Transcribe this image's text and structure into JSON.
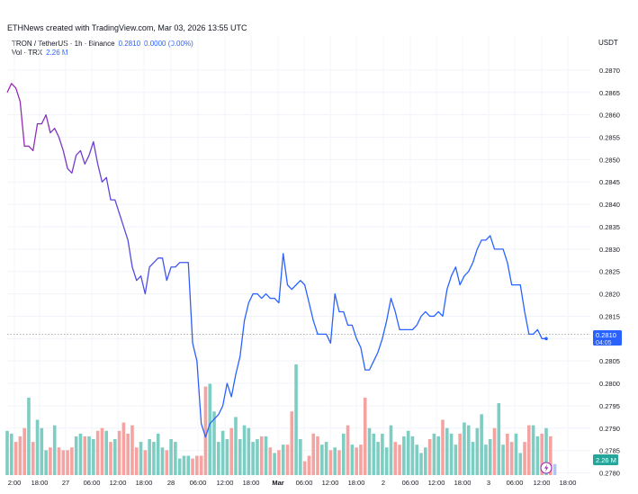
{
  "header": {
    "credit": "ETHNews created with TradingView.com, Mar 03, 2026 13:55 UTC",
    "symbol": "TRON / TetherUS · 1h · Binance",
    "last": "0.2810",
    "change": "0.0000 (0.00%)",
    "vol_label": "Vol · TRX",
    "vol_value": "2.26 M"
  },
  "chart_data": {
    "type": "line",
    "currency_label": "USDT",
    "ylim": [
      0.27795,
      0.28732
    ],
    "yticks": [
      "0.2870",
      "0.2865",
      "0.2860",
      "0.2855",
      "0.2850",
      "0.2845",
      "0.2840",
      "0.2835",
      "0.2830",
      "0.2825",
      "0.2820",
      "0.2815",
      "0.2810",
      "0.2805",
      "0.2800",
      "0.2795",
      "0.2790",
      "0.2785",
      "0.2780"
    ],
    "xticks": [
      "2:00",
      "18:00",
      "27",
      "06:00",
      "12:00",
      "18:00",
      "28",
      "06:00",
      "12:00",
      "18:00",
      "Mar",
      "06:00",
      "12:00",
      "18:00",
      "2",
      "06:00",
      "12:00",
      "18:00",
      "3",
      "06:00",
      "12:00",
      "18:00"
    ],
    "price_label": "0.2810",
    "countdown": "04:05",
    "volume_label": "2.26 M",
    "colors": {
      "line_start": "#9c27b0",
      "line_end": "#2962ff",
      "vol_up": "#7ecdc3",
      "vol_down": "#f4a3a1",
      "price_badge": "#2962ff"
    },
    "series": [
      {
        "values": [
          0.2865,
          0.2867,
          0.2866,
          0.2863,
          0.2853,
          0.2853,
          0.2852,
          0.2858,
          0.2858,
          0.286,
          0.2856,
          0.2857,
          0.2855,
          0.2852,
          0.2848,
          0.2847,
          0.2851,
          0.2852,
          0.2849,
          0.2851,
          0.2854,
          0.2849,
          0.2845,
          0.2846,
          0.2841,
          0.2841,
          0.2838,
          0.2835,
          0.2832,
          0.2826,
          0.2823,
          0.2824,
          0.282,
          0.2826,
          0.2827,
          0.2828,
          0.2828,
          0.2823,
          0.2826,
          0.2826,
          0.2827,
          0.2827,
          0.2827,
          0.2809,
          0.2805,
          0.2791,
          0.2788,
          0.2791,
          0.2792,
          0.2793,
          0.2795,
          0.28,
          0.2797,
          0.2802,
          0.2806,
          0.2814,
          0.2818,
          0.282,
          0.282,
          0.2819,
          0.282,
          0.2819,
          0.2819,
          0.2818,
          0.2829,
          0.2822,
          0.2821,
          0.2822,
          0.2823,
          0.2822,
          0.2818,
          0.2814,
          0.2811,
          0.2811,
          0.2811,
          0.2809,
          0.282,
          0.2816,
          0.2816,
          0.2813,
          0.2813,
          0.281,
          0.2808,
          0.2803,
          0.2803,
          0.2805,
          0.2807,
          0.281,
          0.2814,
          0.2819,
          0.2816,
          0.2812,
          0.2812,
          0.2812,
          0.2812,
          0.2813,
          0.2815,
          0.2816,
          0.2815,
          0.2815,
          0.2816,
          0.2815,
          0.2821,
          0.2824,
          0.2826,
          0.2822,
          0.2824,
          0.2825,
          0.2827,
          0.283,
          0.2832,
          0.2832,
          0.2833,
          0.283,
          0.283,
          0.283,
          0.2827,
          0.2822,
          0.2822,
          0.2822,
          0.2816,
          0.2811,
          0.2811,
          0.2812,
          0.281,
          0.281
        ]
      }
    ],
    "volume": [
      16,
      15,
      12,
      14,
      17,
      28,
      12,
      20,
      17,
      9,
      10,
      18,
      10,
      9,
      9,
      10,
      14,
      15,
      14,
      14,
      13,
      16,
      17,
      16,
      12,
      13,
      16,
      19,
      15,
      18,
      10,
      12,
      9,
      13,
      12,
      15,
      10,
      9,
      13,
      12,
      6,
      7,
      7,
      6,
      7,
      7,
      32,
      33,
      23,
      12,
      16,
      13,
      17,
      21,
      13,
      18,
      17,
      12,
      13,
      14,
      14,
      10,
      8,
      9,
      11,
      11,
      23,
      40,
      13,
      5,
      7,
      15,
      14,
      11,
      12,
      9,
      10,
      9,
      15,
      18,
      11,
      10,
      11,
      28,
      17,
      15,
      12,
      15,
      10,
      18,
      12,
      11,
      14,
      16,
      14,
      11,
      8,
      10,
      13,
      15,
      14,
      20,
      17,
      15,
      11,
      15,
      19,
      18,
      12,
      17,
      22,
      11,
      13,
      17,
      26,
      11,
      15,
      12,
      15,
      8,
      12,
      18,
      18,
      14,
      15,
      17,
      14,
      4
    ]
  }
}
